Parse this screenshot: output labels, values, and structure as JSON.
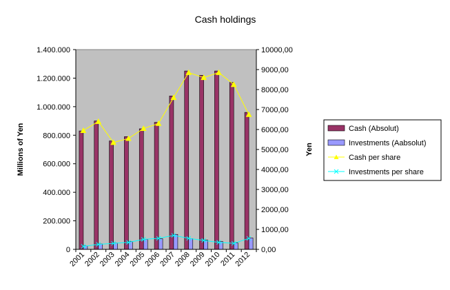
{
  "chart_data": {
    "type": "bar",
    "title": "Cash holdings",
    "categories": [
      "2001",
      "2002",
      "2003",
      "2004",
      "2005",
      "2006",
      "2007",
      "2008",
      "2009",
      "2010",
      "2011",
      "2012"
    ],
    "ylabel": "Millions of Yen",
    "y2label": "Yen",
    "ylim": [
      0,
      1400000
    ],
    "y2lim": [
      0,
      10000
    ],
    "yticks": [
      "0",
      "200.000",
      "400.000",
      "600.000",
      "800.000",
      "1.000.000",
      "1.200.000",
      "1.400.000"
    ],
    "y2ticks": [
      "0,00",
      "1000,00",
      "2000,00",
      "3000,00",
      "4000,00",
      "5000,00",
      "6000,00",
      "7000,00",
      "8000,00",
      "9000,00",
      "10000,00"
    ],
    "grid": false,
    "legend_position": "right",
    "series": [
      {
        "name": "Cash (Absolut)",
        "type": "bar",
        "axis": "left",
        "color": "#993366",
        "values": [
          830000,
          900000,
          760000,
          790000,
          845000,
          890000,
          1075000,
          1250000,
          1220000,
          1250000,
          1170000,
          960000
        ]
      },
      {
        "name": "Investments (Aabsolut)",
        "type": "bar",
        "axis": "left",
        "color": "#9999ff",
        "values": [
          25000,
          38000,
          45000,
          55000,
          70000,
          75000,
          105000,
          75000,
          65000,
          55000,
          45000,
          80000
        ]
      },
      {
        "name": "Cash per share",
        "type": "line",
        "axis": "right",
        "color": "#ffff00",
        "marker": "triangle",
        "values": [
          5950,
          6400,
          5350,
          5550,
          6050,
          6300,
          7600,
          8850,
          8600,
          8850,
          8250,
          6750
        ]
      },
      {
        "name": "Investments per share",
        "type": "line",
        "axis": "right",
        "color": "#00ffff",
        "marker": "x",
        "values": [
          150,
          250,
          300,
          350,
          500,
          550,
          700,
          550,
          450,
          350,
          300,
          550
        ]
      }
    ]
  }
}
